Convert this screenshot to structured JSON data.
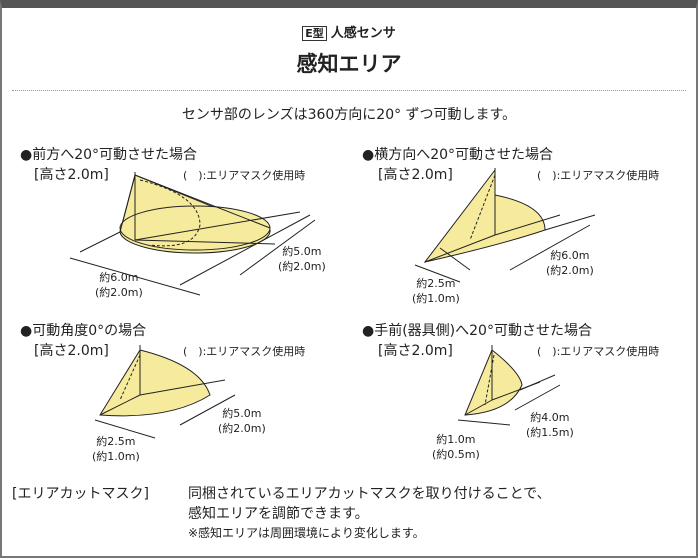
{
  "header": {
    "type_tag": "E型",
    "subtitle": "人感センサ",
    "title": "感知エリア",
    "lead": "センサ部のレンズは360方向に20° ずつ可動します。"
  },
  "mask_note": "(　):エリアマスク使用時",
  "height_label": "[高さ2.0m]",
  "fill_color": "#f6eb9c",
  "panels": [
    {
      "heading": "●前方へ20°可動させた場合",
      "dim_a": "約6.0m",
      "dim_a_mask": "(約2.0m)",
      "dim_b": "約5.0m",
      "dim_b_mask": "(約2.0m)"
    },
    {
      "heading": "●横方向へ20°可動させた場合",
      "dim_a": "約2.5m",
      "dim_a_mask": "(約1.0m)",
      "dim_b": "約6.0m",
      "dim_b_mask": "(約2.0m)"
    },
    {
      "heading": "●可動角度0°の場合",
      "dim_a": "約2.5m",
      "dim_a_mask": "(約1.0m)",
      "dim_b": "約5.0m",
      "dim_b_mask": "(約2.0m)"
    },
    {
      "heading": "●手前(器具側)へ20°可動させた場合",
      "dim_a": "約1.0m",
      "dim_a_mask": "(約0.5m)",
      "dim_b": "約4.0m",
      "dim_b_mask": "(約1.5m)"
    }
  ],
  "footer": {
    "label": "[エリアカットマスク]",
    "line1": "同梱されているエリアカットマスクを取り付けることで、",
    "line2": "感知エリアを調節できます。",
    "note": "※感知エリアは周囲環境により変化します。"
  }
}
